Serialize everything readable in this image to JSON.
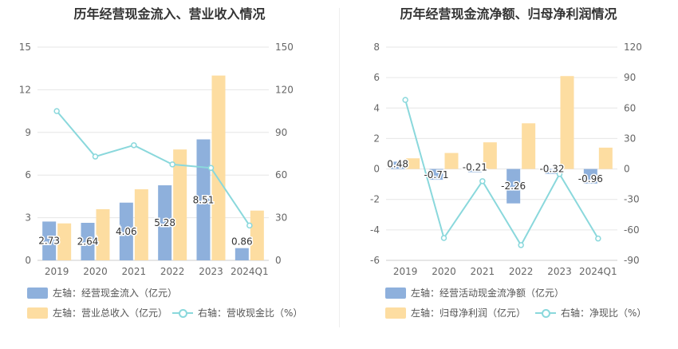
{
  "chart_data": [
    {
      "type": "bar",
      "title": "历年经营现金流入、营业收入情况",
      "categories": [
        "2019",
        "2020",
        "2021",
        "2022",
        "2023",
        "2024Q1"
      ],
      "left_axis": {
        "ticks": [
          "0",
          "3",
          "6",
          "9",
          "12",
          "15"
        ],
        "ylim": [
          0,
          15
        ]
      },
      "right_axis": {
        "ticks": [
          "0",
          "30",
          "60",
          "90",
          "120",
          "150"
        ],
        "ylim": [
          0,
          150
        ]
      },
      "series": [
        {
          "name": "左轴：经营现金流入（亿元）",
          "type": "bar",
          "axis": "left",
          "color": "#8eb0dc",
          "values": [
            2.73,
            2.64,
            4.06,
            5.28,
            8.51,
            0.86
          ],
          "labels": [
            "2.73",
            "2.64",
            "4.06",
            "5.28",
            "8.51",
            "0.86"
          ]
        },
        {
          "name": "左轴：营业总收入（亿元）",
          "type": "bar",
          "axis": "left",
          "color": "#fddda1",
          "values": [
            2.6,
            3.6,
            5.0,
            7.8,
            13.0,
            3.5
          ]
        },
        {
          "name": "右轴：营收现金比（%）",
          "type": "line",
          "axis": "right",
          "color": "#8ad8dc",
          "values": [
            105.0,
            73.0,
            81.0,
            67.5,
            65.0,
            24.5
          ]
        }
      ]
    },
    {
      "type": "bar",
      "title": "历年经营现金流净额、归母净利润情况",
      "categories": [
        "2019",
        "2020",
        "2021",
        "2022",
        "2023",
        "2024Q1"
      ],
      "left_axis": {
        "ticks": [
          "-6",
          "-4",
          "-2",
          "0",
          "2",
          "4",
          "6",
          "8"
        ],
        "ylim": [
          -6,
          8
        ]
      },
      "right_axis": {
        "ticks": [
          "-90",
          "-60",
          "-30",
          "0",
          "30",
          "60",
          "90",
          "120"
        ],
        "ylim": [
          -90,
          120
        ]
      },
      "series": [
        {
          "name": "左轴：经营活动现金流净额（亿元）",
          "type": "bar",
          "axis": "left",
          "color": "#8eb0dc",
          "values": [
            0.48,
            -0.71,
            -0.21,
            -2.26,
            -0.32,
            -0.96
          ],
          "labels": [
            "0.48",
            "-0.71",
            "-0.21",
            "-2.26",
            "-0.32",
            "-0.96"
          ]
        },
        {
          "name": "左轴：归母净利润（亿元）",
          "type": "bar",
          "axis": "left",
          "color": "#fddda1",
          "values": [
            0.7,
            1.05,
            1.75,
            3.0,
            6.1,
            1.4
          ]
        },
        {
          "name": "右轴：净现比（%）",
          "type": "line",
          "axis": "right",
          "color": "#8ad8dc",
          "values": [
            68.0,
            -68.0,
            -12.0,
            -75.0,
            -5.0,
            -68.5
          ]
        }
      ]
    }
  ]
}
